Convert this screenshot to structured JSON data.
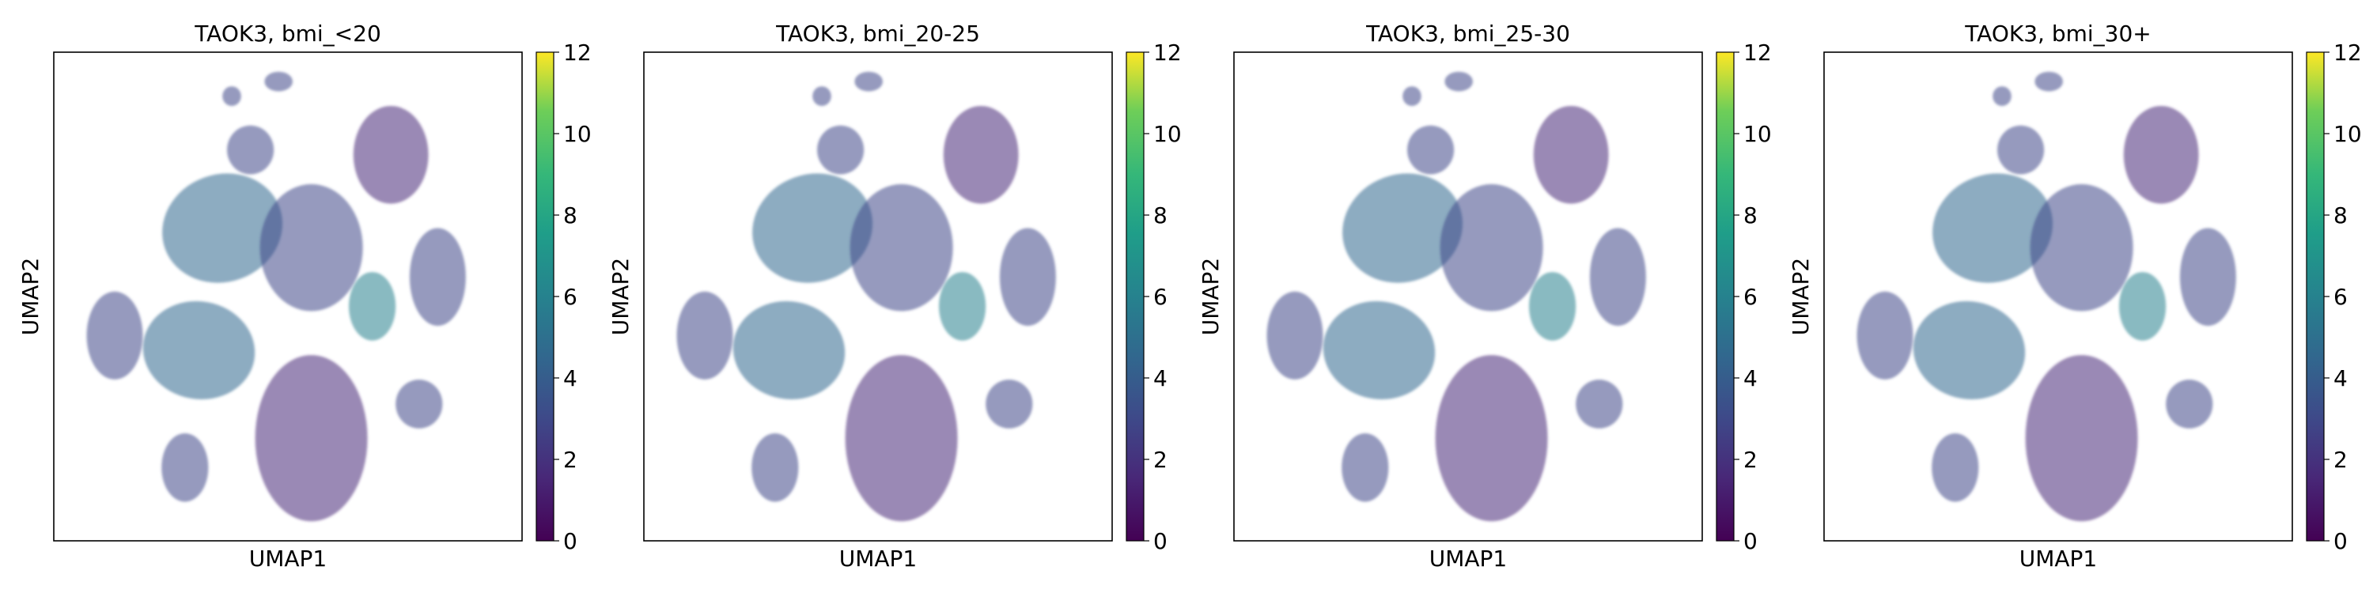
{
  "colormap": "viridis",
  "colors": {
    "viridis_low": "#440154",
    "viridis_high": "#fde725"
  },
  "chart_data": [
    {
      "type": "scatter",
      "title": "TAOK3, bmi_<20",
      "xlabel": "UMAP1",
      "ylabel": "UMAP2",
      "colorbar": {
        "range": [
          0,
          12
        ],
        "ticks": [
          "0",
          "2",
          "4",
          "6",
          "8",
          "10",
          "12"
        ]
      },
      "axis_ticks_shown": false,
      "grid": false
    },
    {
      "type": "scatter",
      "title": "TAOK3, bmi_20-25",
      "xlabel": "UMAP1",
      "ylabel": "UMAP2",
      "colorbar": {
        "range": [
          0,
          12
        ],
        "ticks": [
          "0",
          "2",
          "4",
          "6",
          "8",
          "10",
          "12"
        ]
      },
      "axis_ticks_shown": false,
      "grid": false
    },
    {
      "type": "scatter",
      "title": "TAOK3, bmi_25-30",
      "xlabel": "UMAP1",
      "ylabel": "UMAP2",
      "colorbar": {
        "range": [
          0,
          12
        ],
        "ticks": [
          "0",
          "2",
          "4",
          "6",
          "8",
          "10",
          "12"
        ]
      },
      "axis_ticks_shown": false,
      "grid": false
    },
    {
      "type": "scatter",
      "title": "TAOK3, bmi_30+",
      "xlabel": "UMAP1",
      "ylabel": "UMAP2",
      "colorbar": {
        "range": [
          0,
          12
        ],
        "ticks": [
          "0",
          "2",
          "4",
          "6",
          "8",
          "10",
          "12"
        ]
      },
      "axis_ticks_shown": false,
      "grid": false
    }
  ]
}
